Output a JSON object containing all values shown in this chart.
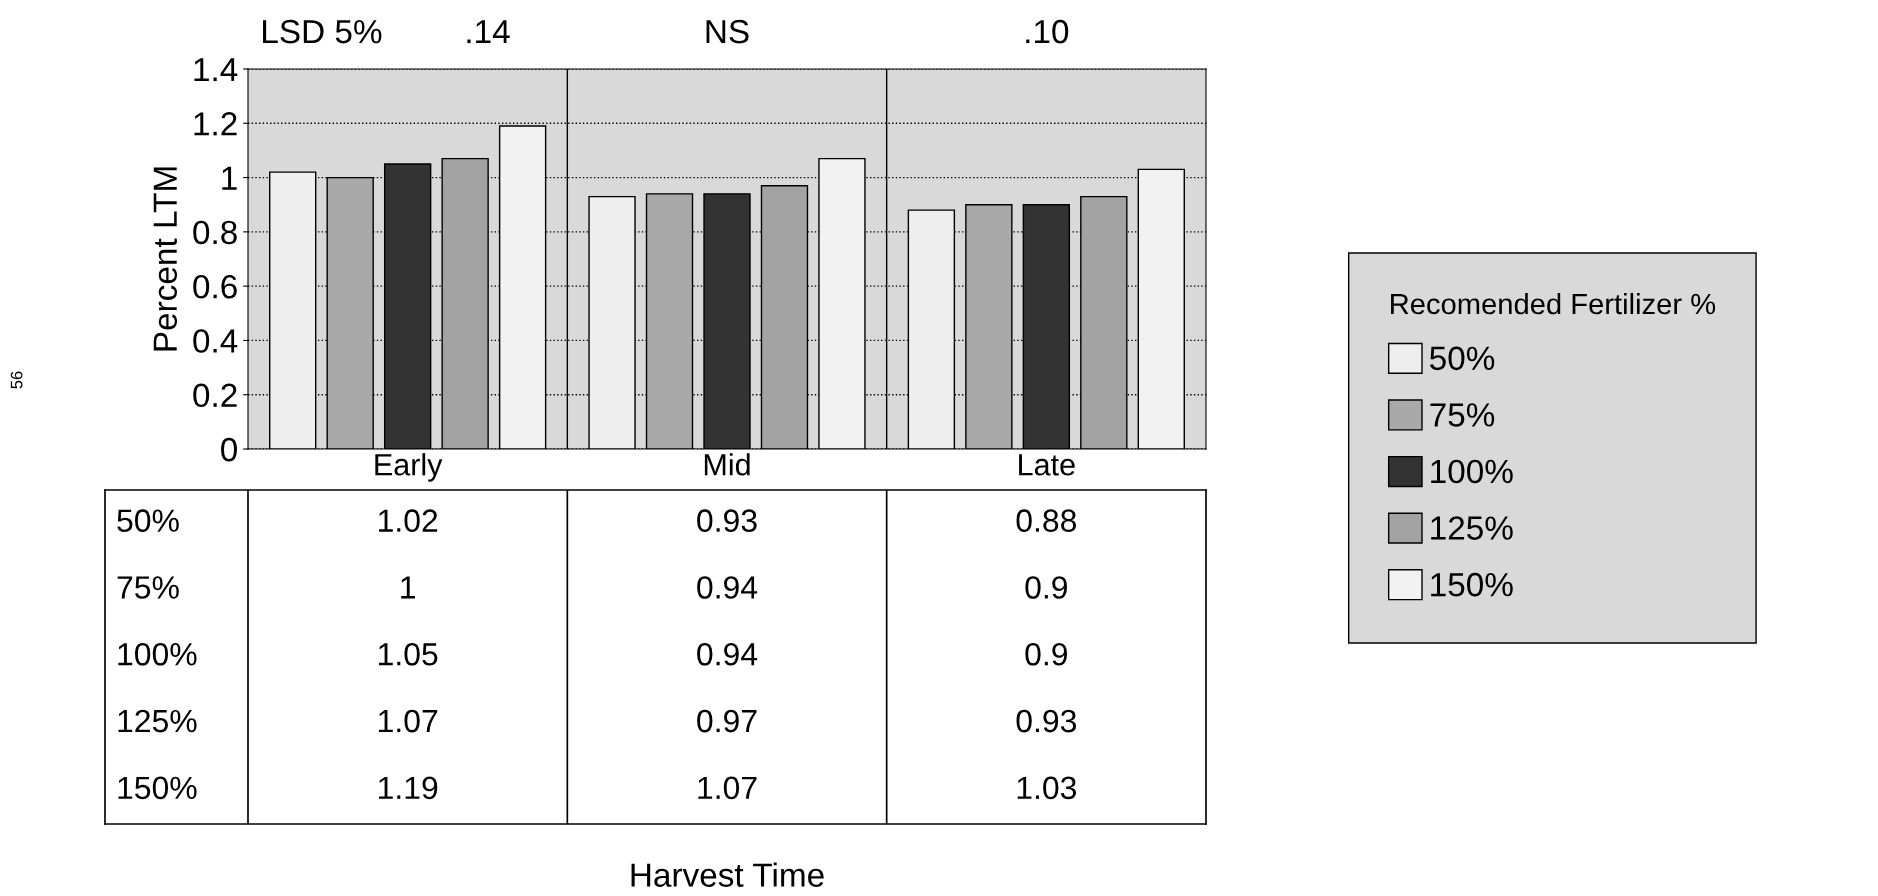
{
  "chart_data": {
    "type": "bar",
    "categories": [
      "Early",
      "Mid",
      "Late"
    ],
    "series": [
      {
        "name": "50%",
        "color": "#eeeeee",
        "values": [
          1.02,
          0.93,
          0.88
        ]
      },
      {
        "name": "75%",
        "color": "#a9a9a9",
        "values": [
          1,
          0.94,
          0.9
        ]
      },
      {
        "name": "100%",
        "color": "#333333",
        "values": [
          1.05,
          0.94,
          0.9
        ]
      },
      {
        "name": "125%",
        "color": "#a3a3a3",
        "values": [
          1.07,
          0.97,
          0.93
        ]
      },
      {
        "name": "150%",
        "color": "#f2f2f2",
        "values": [
          1.19,
          1.07,
          1.03
        ]
      }
    ],
    "ylabel": "Percent LTM",
    "legend_title": "Recomended Fertilizer %",
    "ylim": [
      0,
      1.4
    ],
    "yticks": [
      0,
      0.2,
      0.4,
      0.6,
      0.8,
      1,
      1.2,
      1.4
    ],
    "annotations": [
      "LSD 5%",
      ".14",
      "NS",
      ".10",
      "56",
      "Harvest Time"
    ],
    "grid": "y",
    "legend": "right",
    "data_labels": true
  }
}
